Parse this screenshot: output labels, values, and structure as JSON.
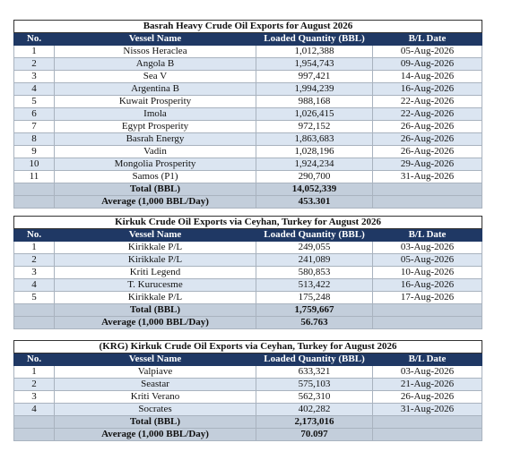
{
  "tables": [
    {
      "title": "Basrah Heavy Crude Oil Exports for August 2026",
      "columns": [
        "No.",
        "Vessel Name",
        "Loaded Quantity (BBL)",
        "B/L Date"
      ],
      "rows": [
        [
          "1",
          "Nissos Heraclea",
          "1,012,388",
          "05-Aug-2026"
        ],
        [
          "2",
          "Angola B",
          "1,954,743",
          "09-Aug-2026"
        ],
        [
          "3",
          "Sea V",
          "997,421",
          "14-Aug-2026"
        ],
        [
          "4",
          "Argentina B",
          "1,994,239",
          "16-Aug-2026"
        ],
        [
          "5",
          "Kuwait Prosperity",
          "988,168",
          "22-Aug-2026"
        ],
        [
          "6",
          "Imola",
          "1,026,415",
          "22-Aug-2026"
        ],
        [
          "7",
          "Egypt Prosperity",
          "972,152",
          "26-Aug-2026"
        ],
        [
          "8",
          "Basrah Energy",
          "1,863,683",
          "26-Aug-2026"
        ],
        [
          "9",
          "Vadin",
          "1,028,196",
          "26-Aug-2026"
        ],
        [
          "10",
          "Mongolia Prosperity",
          "1,924,234",
          "29-Aug-2026"
        ],
        [
          "11",
          "Samos (P1)",
          "290,700",
          "31-Aug-2026"
        ]
      ],
      "total_label": "Total (BBL)",
      "total": "14,052,339",
      "average_label": "Average (1,000 BBL/Day)",
      "average": "453.301"
    },
    {
      "title": "Kirkuk Crude Oil Exports via Ceyhan, Turkey for August 2026",
      "columns": [
        "No.",
        "Vessel Name",
        "Loaded Quantity (BBL)",
        "B/L Date"
      ],
      "rows": [
        [
          "1",
          "Kirikkale P/L",
          "249,055",
          "03-Aug-2026"
        ],
        [
          "2",
          "Kirikkale P/L",
          "241,089",
          "05-Aug-2026"
        ],
        [
          "3",
          "Kriti Legend",
          "580,853",
          "10-Aug-2026"
        ],
        [
          "4",
          "T. Kurucesme",
          "513,422",
          "16-Aug-2026"
        ],
        [
          "5",
          "Kirikkale P/L",
          "175,248",
          "17-Aug-2026"
        ]
      ],
      "total_label": "Total (BBL)",
      "total": "1,759,667",
      "average_label": "Average (1,000 BBL/Day)",
      "average": "56.763"
    },
    {
      "title": "(KRG) Kirkuk Crude Oil Exports via Ceyhan, Turkey for August 2026",
      "columns": [
        "No.",
        "Vessel Name",
        "Loaded Quantity (BBL)",
        "B/L Date"
      ],
      "rows": [
        [
          "1",
          "Valpiave",
          "633,321",
          "03-Aug-2026"
        ],
        [
          "2",
          "Seastar",
          "575,103",
          "21-Aug-2026"
        ],
        [
          "3",
          "Kriti Verano",
          "562,310",
          "26-Aug-2026"
        ],
        [
          "4",
          "Socrates",
          "402,282",
          "31-Aug-2026"
        ]
      ],
      "total_label": "Total (BBL)",
      "total": "2,173,016",
      "average_label": "Average (1,000 BBL/Day)",
      "average": "70.097"
    }
  ]
}
